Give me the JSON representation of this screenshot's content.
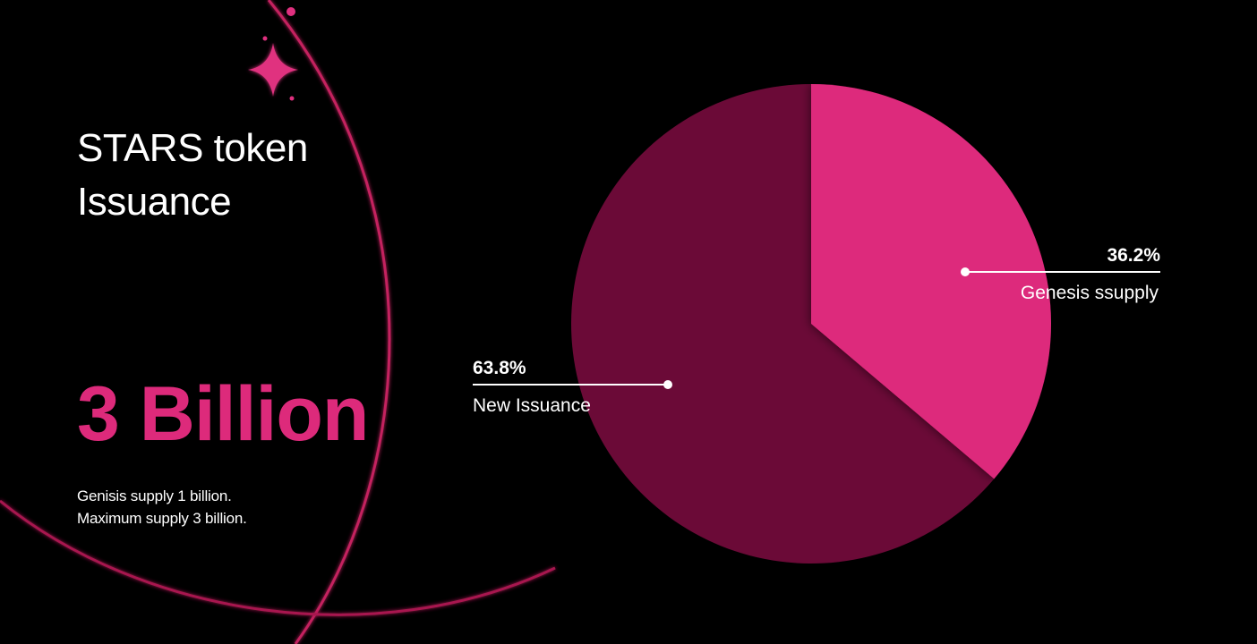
{
  "title": {
    "line1": "STARS token",
    "line2": "Issuance"
  },
  "headline": "3 Billion",
  "description": {
    "line1": "Genisis supply 1 billion.",
    "line2": "Maximum supply 3 billion."
  },
  "colors": {
    "accent": "#dd2a7b",
    "dark_slice": "#6b0a37",
    "background": "#000000"
  },
  "chart_data": {
    "type": "pie",
    "slices": [
      {
        "label": "Genesis ssupply",
        "value": 36.2,
        "value_label": "36.2%",
        "color": "#dd2a7b"
      },
      {
        "label": "New Issuance",
        "value": 63.8,
        "value_label": "63.8%",
        "color": "#6b0a37"
      }
    ]
  }
}
